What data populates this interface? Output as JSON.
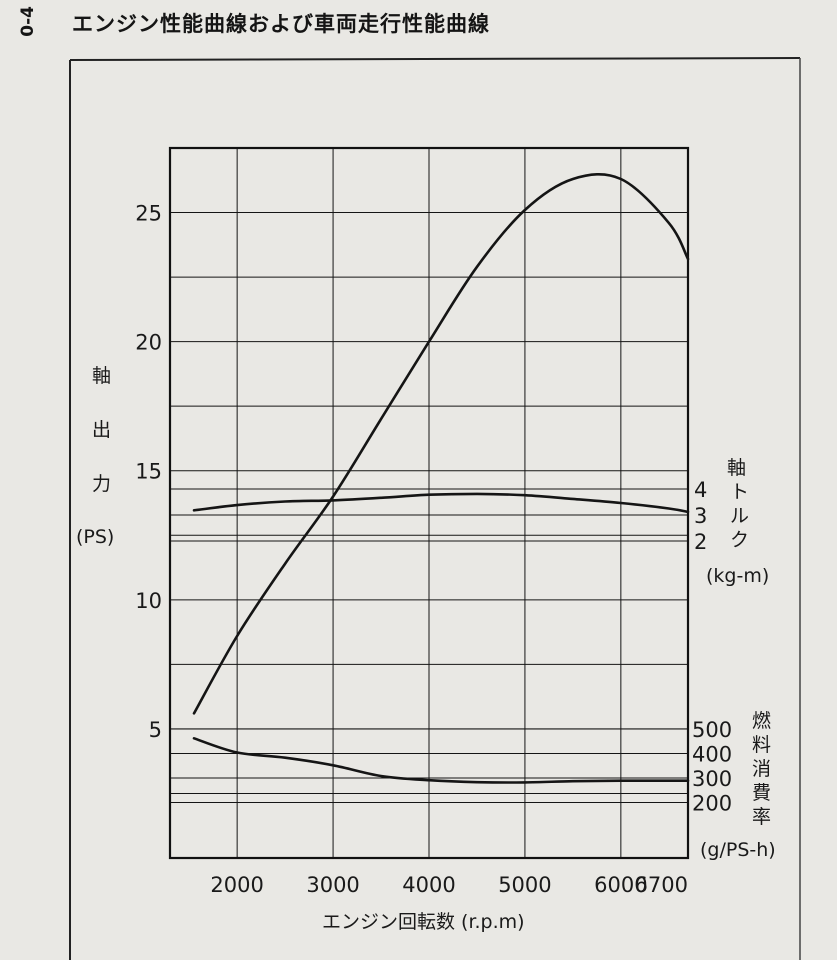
{
  "page": {
    "number": "0-4",
    "title": "エンジン性能曲線および車両走行性能曲線"
  },
  "chart_data": {
    "type": "line",
    "x": {
      "label": "エンジン回転数 (r.p.m)",
      "range": [
        1300,
        6700
      ],
      "ticks": [
        2000,
        3000,
        4000,
        5000,
        6000,
        6700
      ],
      "tick_labels": [
        "2000",
        "3000",
        "4000",
        "5000",
        "6000",
        "6700"
      ]
    },
    "y_power": {
      "label_chars": [
        "軸",
        "出",
        "力"
      ],
      "unit": "(PS)",
      "range": [
        0,
        27.5
      ],
      "ticks": [
        5,
        10,
        15,
        20,
        25
      ],
      "tick_labels": [
        "5",
        "10",
        "15",
        "20",
        "25"
      ]
    },
    "y_torque": {
      "label_chars": [
        "軸",
        "ト",
        "ル",
        "ク"
      ],
      "unit": "(kg-m)",
      "ticks": [
        4,
        3,
        2
      ],
      "tick_labels": [
        "4",
        "3",
        "2"
      ]
    },
    "y_fuel": {
      "label_chars": [
        "燃",
        "料",
        "消",
        "費",
        "率"
      ],
      "unit": "(g/PS-h)",
      "ticks": [
        500,
        400,
        300,
        200
      ],
      "tick_labels": [
        "500",
        "400",
        "300",
        "200"
      ]
    },
    "grid": true,
    "series": [
      {
        "axis": "power",
        "x": [
          1550,
          2000,
          2500,
          3000,
          3500,
          4000,
          4500,
          5000,
          5500,
          6000,
          6500,
          6700
        ],
        "y": [
          5.6,
          8.6,
          11.4,
          14.0,
          17.0,
          20.0,
          22.9,
          25.1,
          26.3,
          26.3,
          24.6,
          23.2
        ]
      },
      {
        "axis": "torque",
        "x": [
          1550,
          2000,
          2500,
          3000,
          3500,
          4000,
          4500,
          5000,
          5500,
          6000,
          6500,
          6700
        ],
        "y": [
          3.18,
          3.38,
          3.52,
          3.56,
          3.66,
          3.78,
          3.81,
          3.76,
          3.62,
          3.46,
          3.25,
          3.12
        ]
      },
      {
        "axis": "fuel",
        "x": [
          1550,
          2000,
          2500,
          3000,
          3500,
          4000,
          4500,
          5000,
          5500,
          6000,
          6500,
          6700
        ],
        "y": [
          462,
          404,
          383,
          352,
          308,
          291,
          283,
          282,
          287,
          289,
          289,
          289
        ]
      }
    ]
  },
  "colors": {
    "ink": "#151515",
    "paper": "#e9e8e4"
  }
}
